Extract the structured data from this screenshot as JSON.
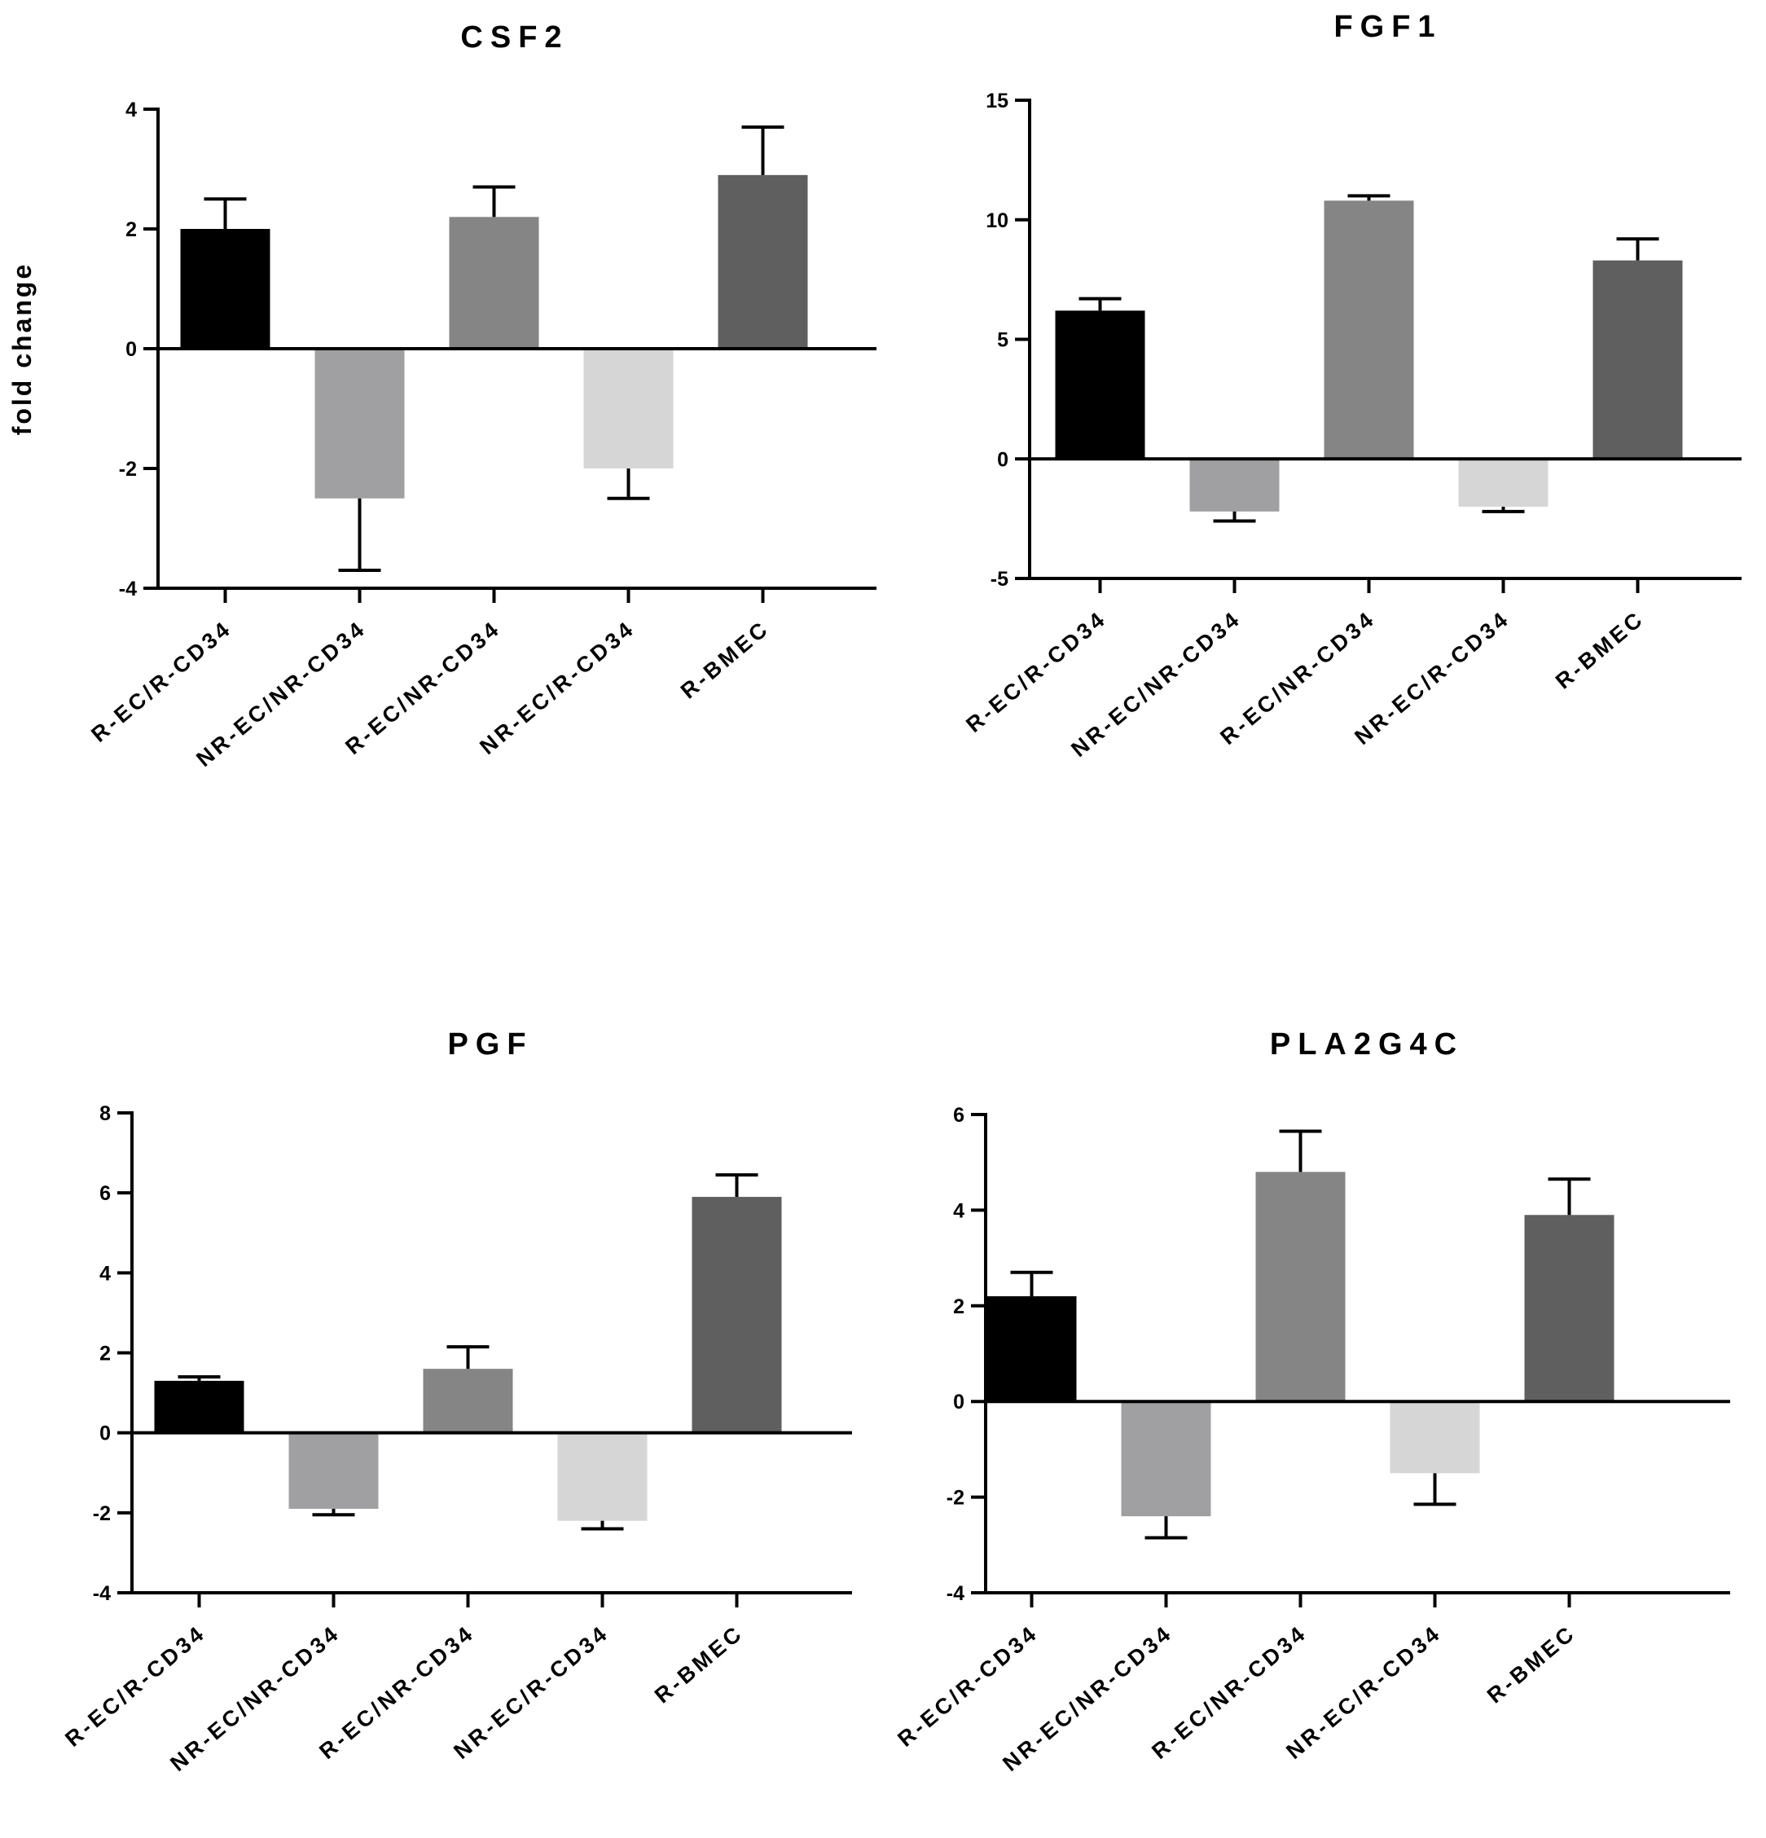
{
  "chart_data": [
    {
      "type": "bar",
      "title": "CSF2",
      "xlabel": "",
      "ylabel": "fold change",
      "ylim": [
        -4,
        4
      ],
      "yticks": [
        -4,
        -2,
        0,
        2,
        4
      ],
      "categories": [
        "R-EC/R-CD34",
        "NR-EC/NR-CD34",
        "R-EC/NR-CD34",
        "NR-EC/R-CD34",
        "R-BMEC"
      ],
      "values": [
        2.0,
        -2.5,
        2.2,
        -2.0,
        2.9
      ],
      "errors": [
        0.5,
        1.2,
        0.5,
        0.5,
        0.8
      ],
      "colors": [
        "#000000",
        "#a0a0a3",
        "#858585",
        "#d6d6d6",
        "#5f5f5f"
      ]
    },
    {
      "type": "bar",
      "title": "FGF1",
      "xlabel": "",
      "ylabel": "",
      "ylim": [
        -5,
        15
      ],
      "yticks": [
        -5,
        0,
        5,
        10,
        15
      ],
      "categories": [
        "R-EC/R-CD34",
        "NR-EC/NR-CD34",
        "R-EC/NR-CD34",
        "NR-EC/R-CD34",
        "R-BMEC"
      ],
      "values": [
        6.2,
        -2.2,
        10.8,
        -2.0,
        8.3
      ],
      "errors": [
        0.5,
        0.4,
        0.2,
        0.2,
        0.9
      ],
      "colors": [
        "#000000",
        "#a0a0a3",
        "#858585",
        "#d6d6d6",
        "#5f5f5f"
      ]
    },
    {
      "type": "bar",
      "title": "PGF",
      "xlabel": "",
      "ylabel": "",
      "ylim": [
        -4,
        8
      ],
      "yticks": [
        -4,
        -2,
        0,
        2,
        4,
        6,
        8
      ],
      "categories": [
        "R-EC/R-CD34",
        "NR-EC/NR-CD34",
        "R-EC/NR-CD34",
        "NR-EC/R-CD34",
        "R-BMEC"
      ],
      "values": [
        1.3,
        -1.9,
        1.6,
        -2.2,
        5.9
      ],
      "errors": [
        0.1,
        0.15,
        0.55,
        0.2,
        0.55
      ],
      "colors": [
        "#000000",
        "#a0a0a3",
        "#858585",
        "#d6d6d6",
        "#5f5f5f"
      ]
    },
    {
      "type": "bar",
      "title": "PLA2G4C",
      "xlabel": "",
      "ylabel": "",
      "ylim": [
        -4,
        6
      ],
      "yticks": [
        -4,
        -2,
        0,
        2,
        4,
        6
      ],
      "categories": [
        "R-EC/R-CD34",
        "NR-EC/NR-CD34",
        "R-EC/NR-CD34",
        "NR-EC/R-CD34",
        "R-BMEC"
      ],
      "values": [
        2.2,
        -2.4,
        4.8,
        -1.5,
        3.9
      ],
      "errors": [
        0.5,
        0.45,
        0.85,
        0.65,
        0.75
      ],
      "colors": [
        "#000000",
        "#a0a0a3",
        "#858585",
        "#d6d6d6",
        "#5f5f5f"
      ]
    }
  ]
}
